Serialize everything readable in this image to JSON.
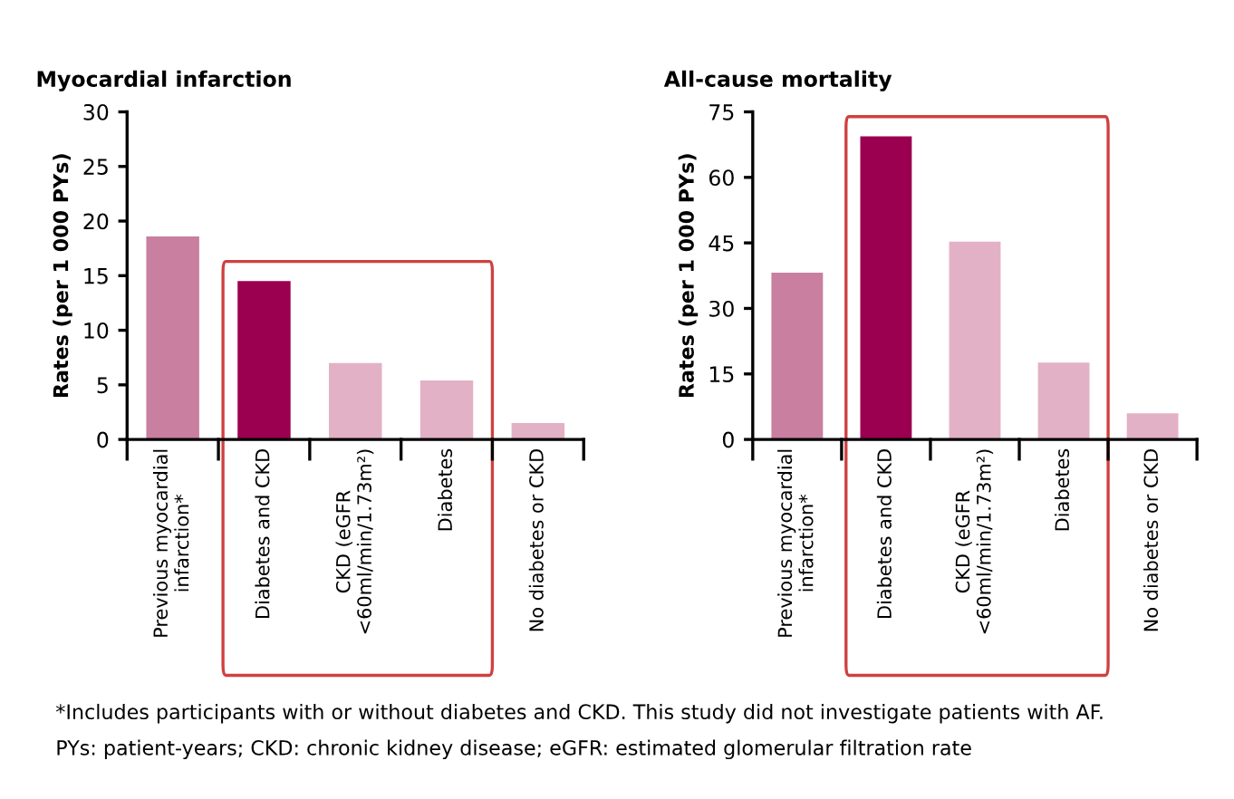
{
  "chart_data": [
    {
      "type": "bar",
      "title": "Myocardial infarction",
      "ylabel": "Rates (per 1 000 PYs)",
      "categories": [
        "Previous myocardial infarction*",
        "Diabetes and CKD",
        "CKD (eGFR <60ml/min/1.73m²)",
        "Diabetes",
        "No diabetes or CKD"
      ],
      "values": [
        18.6,
        14.5,
        7.0,
        5.4,
        1.5
      ],
      "colors": [
        "#c97f9f",
        "#9b0050",
        "#e3b1c5",
        "#e3b1c5",
        "#e3b1c5"
      ],
      "ylim": [
        0,
        30
      ],
      "yticks": [
        0,
        5,
        10,
        15,
        20,
        25,
        30
      ],
      "grid": false,
      "legend": false
    },
    {
      "type": "bar",
      "title": "All-cause mortality",
      "ylabel": "Rates (per 1 000 PYs)",
      "categories": [
        "Previous myocardial infarction*",
        "Diabetes and CKD",
        "CKD (eGFR <60ml/min/1.73m²)",
        "Diabetes",
        "No diabetes or CKD"
      ],
      "values": [
        38.2,
        69.4,
        45.3,
        17.6,
        6.0
      ],
      "colors": [
        "#c97f9f",
        "#9b0050",
        "#e3b1c5",
        "#e3b1c5",
        "#e3b1c5"
      ],
      "ylim": [
        0,
        75
      ],
      "yticks": [
        0,
        15,
        30,
        45,
        60,
        75
      ],
      "grid": false,
      "legend": false,
      "annotations": [
        "*Includes participants with or without diabetes and CKD. This study did not investigate patients with AF.",
        "PYs: patient-years; CKD: chronic kidney disease; eGFR: estimated glomerular filtration rate"
      ]
    }
  ]
}
